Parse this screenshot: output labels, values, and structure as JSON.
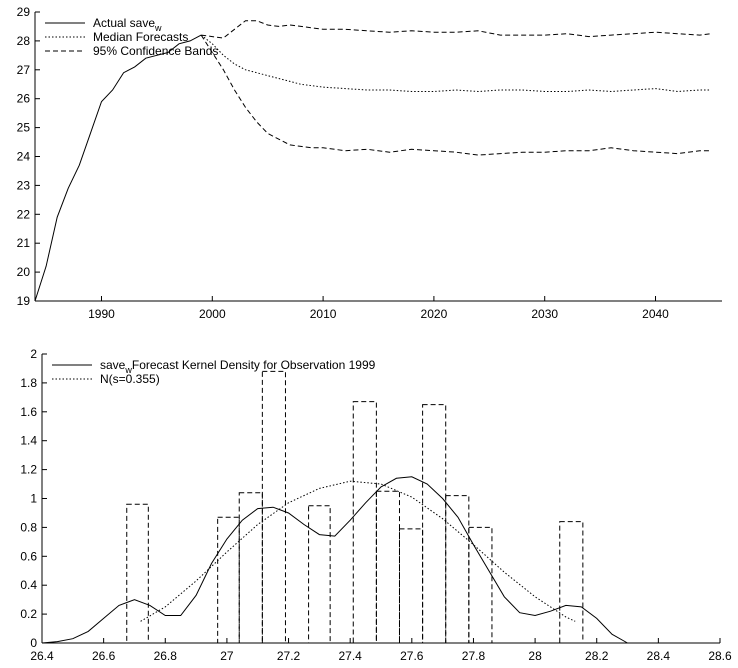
{
  "chart_data": [
    {
      "type": "line",
      "xlim": [
        1984,
        2046
      ],
      "ylim": [
        19,
        29
      ],
      "x_ticks": [
        "1990",
        "2000",
        "2010",
        "2020",
        "2030",
        "2040"
      ],
      "x_tick_values": [
        1990,
        2000,
        2010,
        2020,
        2030,
        2040
      ],
      "y_ticks": [
        "19",
        "20",
        "21",
        "22",
        "23",
        "24",
        "25",
        "26",
        "27",
        "28",
        "29"
      ],
      "y_tick_values": [
        19,
        20,
        21,
        22,
        23,
        24,
        25,
        26,
        27,
        28,
        29
      ],
      "legend_position": "top-left",
      "legend": [
        {
          "label": "Actual save",
          "sub": "w",
          "style": "solid"
        },
        {
          "label": "Median Forecasts",
          "sub": "",
          "style": "dotted"
        },
        {
          "label": "95% Confidence Bands",
          "sub": "",
          "style": "dashed"
        }
      ],
      "series": [
        {
          "name": "Actual save_w",
          "style": "solid",
          "x": [
            1984,
            1985,
            1986,
            1987,
            1988,
            1989,
            1990,
            1991,
            1992,
            1993,
            1994,
            1995,
            1996,
            1997,
            1998,
            1999
          ],
          "y": [
            19.0,
            20.2,
            21.9,
            22.9,
            23.7,
            24.8,
            25.9,
            26.3,
            26.9,
            27.1,
            27.4,
            27.5,
            27.6,
            27.9,
            28.0,
            28.2
          ]
        },
        {
          "name": "Median Forecasts",
          "style": "dotted",
          "x": [
            1999,
            2000,
            2001,
            2002,
            2003,
            2004,
            2005,
            2006,
            2007,
            2008,
            2009,
            2010,
            2012,
            2014,
            2016,
            2018,
            2020,
            2022,
            2024,
            2026,
            2028,
            2030,
            2032,
            2034,
            2036,
            2038,
            2040,
            2042,
            2044,
            2045
          ],
          "y": [
            28.2,
            27.9,
            27.5,
            27.2,
            27.0,
            26.9,
            26.8,
            26.7,
            26.6,
            26.5,
            26.45,
            26.4,
            26.35,
            26.3,
            26.3,
            26.25,
            26.25,
            26.3,
            26.25,
            26.3,
            26.3,
            26.25,
            26.25,
            26.3,
            26.25,
            26.3,
            26.35,
            26.25,
            26.3,
            26.3
          ]
        },
        {
          "name": "95% Confidence Band (upper)",
          "style": "dashed",
          "x": [
            1999,
            2000,
            2001,
            2002,
            2003,
            2004,
            2005,
            2006,
            2007,
            2008,
            2010,
            2012,
            2014,
            2016,
            2018,
            2020,
            2022,
            2024,
            2026,
            2028,
            2030,
            2032,
            2034,
            2036,
            2038,
            2040,
            2042,
            2044,
            2045
          ],
          "y": [
            28.2,
            28.15,
            28.1,
            28.4,
            28.7,
            28.7,
            28.55,
            28.5,
            28.55,
            28.5,
            28.4,
            28.4,
            28.35,
            28.3,
            28.35,
            28.3,
            28.3,
            28.35,
            28.2,
            28.2,
            28.2,
            28.25,
            28.15,
            28.2,
            28.25,
            28.3,
            28.25,
            28.2,
            28.25
          ]
        },
        {
          "name": "95% Confidence Band (lower)",
          "style": "dashed",
          "x": [
            1999,
            2000,
            2001,
            2002,
            2003,
            2004,
            2005,
            2006,
            2007,
            2008,
            2009,
            2010,
            2012,
            2014,
            2016,
            2018,
            2020,
            2022,
            2024,
            2026,
            2028,
            2030,
            2032,
            2034,
            2036,
            2038,
            2040,
            2042,
            2044,
            2045
          ],
          "y": [
            28.2,
            27.6,
            27.0,
            26.3,
            25.7,
            25.2,
            24.8,
            24.6,
            24.4,
            24.35,
            24.3,
            24.3,
            24.2,
            24.25,
            24.15,
            24.25,
            24.2,
            24.15,
            24.05,
            24.1,
            24.15,
            24.15,
            24.2,
            24.2,
            24.3,
            24.2,
            24.15,
            24.1,
            24.2,
            24.2
          ]
        }
      ]
    },
    {
      "type": "bar",
      "xlim": [
        26.4,
        28.6
      ],
      "ylim": [
        0,
        2
      ],
      "x_ticks": [
        "26.4",
        "26.6",
        "26.8",
        "27",
        "27.2",
        "27.4",
        "27.6",
        "27.8",
        "28",
        "28.2",
        "28.4",
        "28.6"
      ],
      "x_tick_values": [
        26.4,
        26.6,
        26.8,
        27.0,
        27.2,
        27.4,
        27.6,
        27.8,
        28.0,
        28.2,
        28.4,
        28.6
      ],
      "y_ticks": [
        "0",
        "0.2",
        "0.4",
        "0.6",
        "0.8",
        "1",
        "1.2",
        "1.4",
        "1.6",
        "1.8",
        "2"
      ],
      "y_tick_values": [
        0,
        0.2,
        0.4,
        0.6,
        0.8,
        1.0,
        1.2,
        1.4,
        1.6,
        1.8,
        2.0
      ],
      "legend_position": "top-left",
      "legend": [
        {
          "label": "save",
          "sub": "w",
          "label2": "Forecast Kernel Density for Observation 1999",
          "style": "solid"
        },
        {
          "label": "N(s=0.355)",
          "sub": "",
          "label2": "",
          "style": "dotted"
        }
      ],
      "histogram": {
        "style": "dashed",
        "bins": [
          {
            "from": 26.675,
            "to": 26.745,
            "height": 0.96
          },
          {
            "from": 26.97,
            "to": 27.04,
            "height": 0.87
          },
          {
            "from": 27.04,
            "to": 27.115,
            "height": 1.04
          },
          {
            "from": 27.115,
            "to": 27.19,
            "height": 1.88
          },
          {
            "from": 27.265,
            "to": 27.335,
            "height": 0.95
          },
          {
            "from": 27.41,
            "to": 27.485,
            "height": 1.67
          },
          {
            "from": 27.485,
            "to": 27.56,
            "height": 1.05
          },
          {
            "from": 27.56,
            "to": 27.635,
            "height": 0.79
          },
          {
            "from": 27.635,
            "to": 27.71,
            "height": 1.65
          },
          {
            "from": 27.71,
            "to": 27.785,
            "height": 1.02
          },
          {
            "from": 27.785,
            "to": 27.86,
            "height": 0.8
          },
          {
            "from": 28.08,
            "to": 28.155,
            "height": 0.84
          }
        ]
      },
      "series": [
        {
          "name": "Kernel Density",
          "style": "solid",
          "x": [
            26.4,
            26.45,
            26.5,
            26.55,
            26.6,
            26.65,
            26.7,
            26.75,
            26.8,
            26.85,
            26.9,
            26.95,
            27.0,
            27.05,
            27.1,
            27.15,
            27.2,
            27.25,
            27.3,
            27.35,
            27.4,
            27.45,
            27.5,
            27.55,
            27.6,
            27.65,
            27.7,
            27.75,
            27.8,
            27.85,
            27.9,
            27.95,
            28.0,
            28.05,
            28.1,
            28.15,
            28.2,
            28.25,
            28.3
          ],
          "y": [
            0.0,
            0.01,
            0.03,
            0.08,
            0.17,
            0.26,
            0.3,
            0.26,
            0.19,
            0.19,
            0.33,
            0.55,
            0.72,
            0.85,
            0.93,
            0.94,
            0.9,
            0.82,
            0.75,
            0.74,
            0.85,
            0.97,
            1.08,
            1.14,
            1.15,
            1.1,
            1.0,
            0.87,
            0.68,
            0.5,
            0.32,
            0.21,
            0.19,
            0.22,
            0.26,
            0.25,
            0.17,
            0.06,
            0.0
          ]
        },
        {
          "name": "N(s=0.355)",
          "style": "dotted",
          "x": [
            26.72,
            26.8,
            26.9,
            27.0,
            27.1,
            27.2,
            27.3,
            27.4,
            27.5,
            27.6,
            27.7,
            27.8,
            27.9,
            28.0,
            28.1,
            28.13
          ],
          "y": [
            0.15,
            0.25,
            0.43,
            0.63,
            0.82,
            0.97,
            1.07,
            1.12,
            1.1,
            1.01,
            0.86,
            0.68,
            0.49,
            0.32,
            0.18,
            0.15
          ]
        }
      ]
    }
  ]
}
